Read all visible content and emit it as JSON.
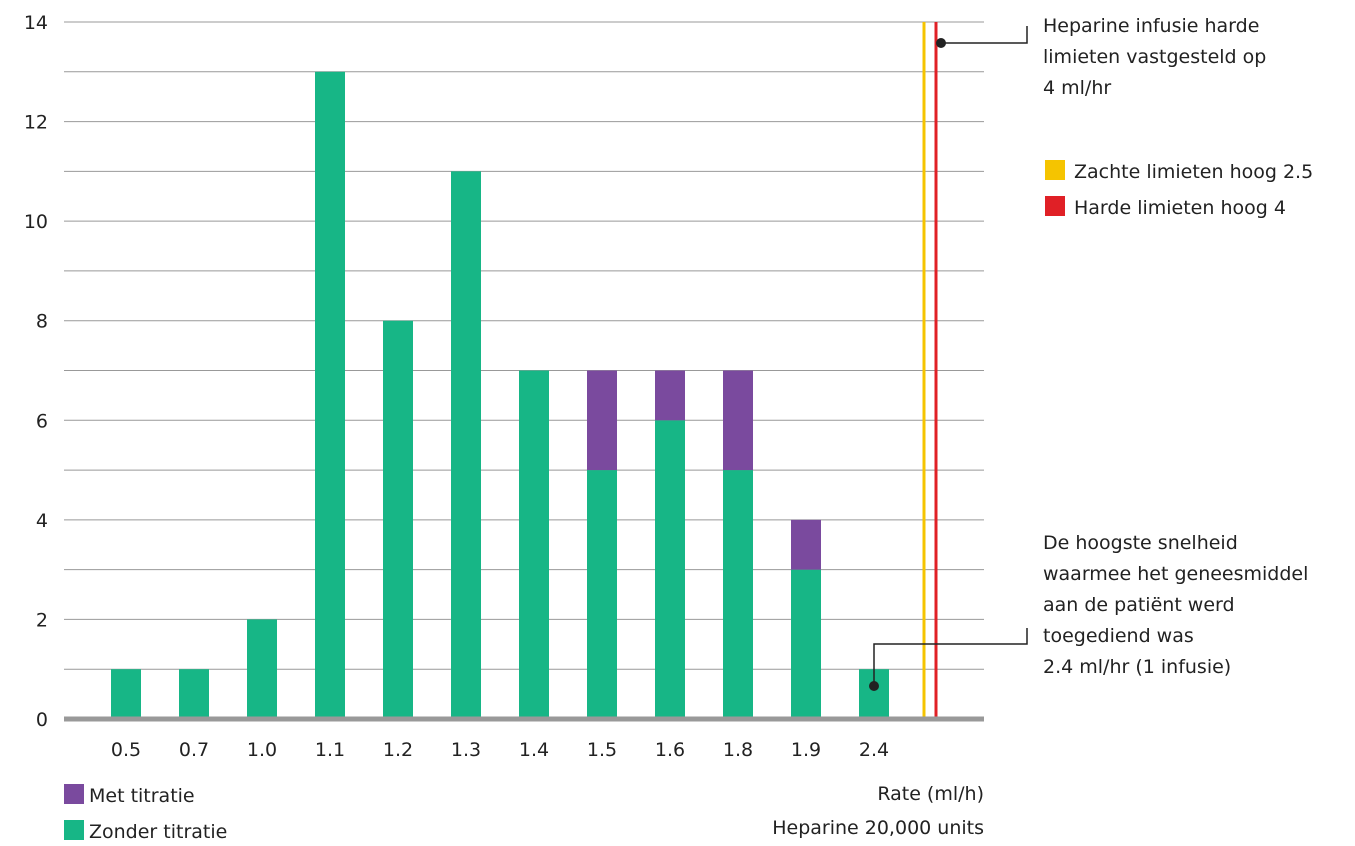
{
  "chart_data": {
    "type": "bar",
    "stacked": true,
    "categories": [
      "0.5",
      "0.7",
      "1.0",
      "1.1",
      "1.2",
      "1.3",
      "1.4",
      "1.5",
      "1.6",
      "1.8",
      "1.9",
      "2.4"
    ],
    "series": [
      {
        "name": "Zonder titratie",
        "color": "#17b686",
        "values": [
          1,
          1,
          2,
          13,
          8,
          11,
          7,
          5,
          6,
          5,
          3,
          1
        ]
      },
      {
        "name": "Met titratie",
        "color": "#7a4a9e",
        "values": [
          0,
          0,
          0,
          0,
          0,
          0,
          0,
          2,
          1,
          2,
          1,
          0
        ]
      }
    ],
    "ylim": [
      0,
      14
    ],
    "yticks": [
      0,
      2,
      4,
      6,
      8,
      10,
      12,
      14
    ],
    "grid": true,
    "grid_step": 1,
    "xlabel": [
      "Rate (ml/h)",
      "Heparine 20,000 units"
    ],
    "legend": {
      "placement": "bottom-left",
      "items": [
        {
          "label": "Met titratie",
          "color": "#7a4a9e"
        },
        {
          "label": "Zonder titratie",
          "color": "#17b686"
        }
      ]
    },
    "limit_lines": [
      {
        "label": "Zachte limieten hoog 2.5",
        "color": "#f5c400"
      },
      {
        "label": "Harde limieten hoog 4",
        "color": "#e02026"
      }
    ],
    "annotations": [
      {
        "target": "hard-limit-line",
        "lines": [
          "Heparine infusie harde",
          "limieten vastgesteld op",
          "4 ml/hr"
        ]
      },
      {
        "target": "bar-2.4",
        "lines": [
          "De hoogste snelheid",
          "waarmee het geneesmiddel",
          "aan de patiënt werd",
          "toegediend was",
          "2.4 ml/hr (1 infusie)"
        ]
      }
    ],
    "axis_color": "#999999",
    "grid_color": "#999999"
  }
}
